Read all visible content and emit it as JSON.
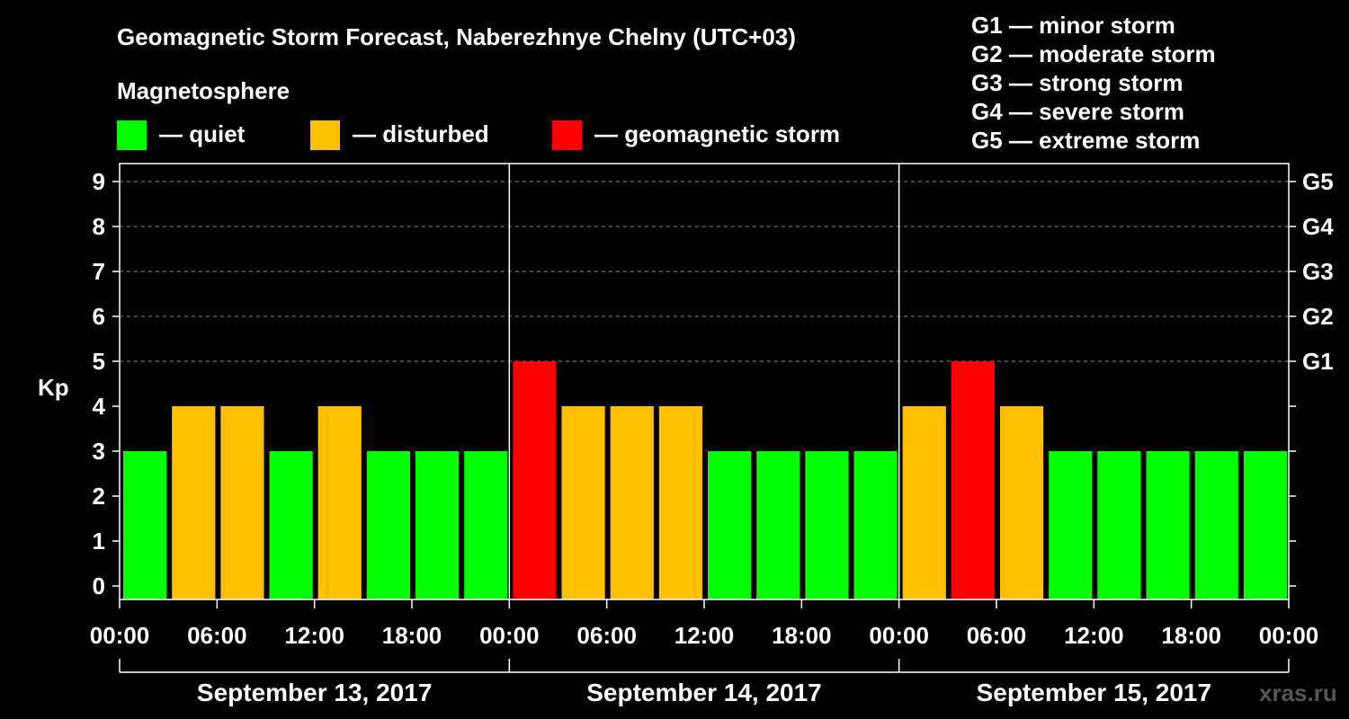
{
  "chart_data": {
    "type": "bar",
    "title": "Geomagnetic Storm Forecast, Naberezhnye Chelny (UTC+03)",
    "subtitle": "Magnetosphere",
    "ylabel": "Kp",
    "ylim": [
      0,
      9
    ],
    "yticks": [
      "0",
      "1",
      "2",
      "3",
      "4",
      "5",
      "6",
      "7",
      "8",
      "9"
    ],
    "storm_levels": [
      {
        "label": "G1",
        "kp": 5
      },
      {
        "label": "G2",
        "kp": 6
      },
      {
        "label": "G3",
        "kp": 7
      },
      {
        "label": "G4",
        "kp": 8
      },
      {
        "label": "G5",
        "kp": 9
      }
    ],
    "storm_legend": [
      "G1 — minor storm",
      "G2 — moderate storm",
      "G3 — strong storm",
      "G4 — severe storm",
      "G5 — extreme storm"
    ],
    "state_legend": [
      {
        "label": "— quiet",
        "color": "#00ff00"
      },
      {
        "label": "— disturbed",
        "color": "#ffc000"
      },
      {
        "label": "— geomagnetic storm",
        "color": "#ff0000"
      }
    ],
    "colors": {
      "quiet": "#00ff00",
      "disturbed": "#ffc000",
      "storm": "#ff0000"
    },
    "xtick_labels": [
      "00:00",
      "06:00",
      "12:00",
      "18:00",
      "00:00",
      "06:00",
      "12:00",
      "18:00",
      "00:00",
      "06:00",
      "12:00",
      "18:00",
      "00:00"
    ],
    "days": [
      {
        "date": "September 13, 2017",
        "kp": [
          3,
          4,
          4,
          3,
          4,
          3,
          3,
          3
        ]
      },
      {
        "date": "September 14, 2017",
        "kp": [
          5,
          4,
          4,
          4,
          3,
          3,
          3,
          3
        ]
      },
      {
        "date": "September 15, 2017",
        "kp": [
          4,
          5,
          4,
          3,
          3,
          3,
          3,
          3
        ]
      }
    ],
    "interval_hours": 3
  },
  "watermark": "xras.ru"
}
